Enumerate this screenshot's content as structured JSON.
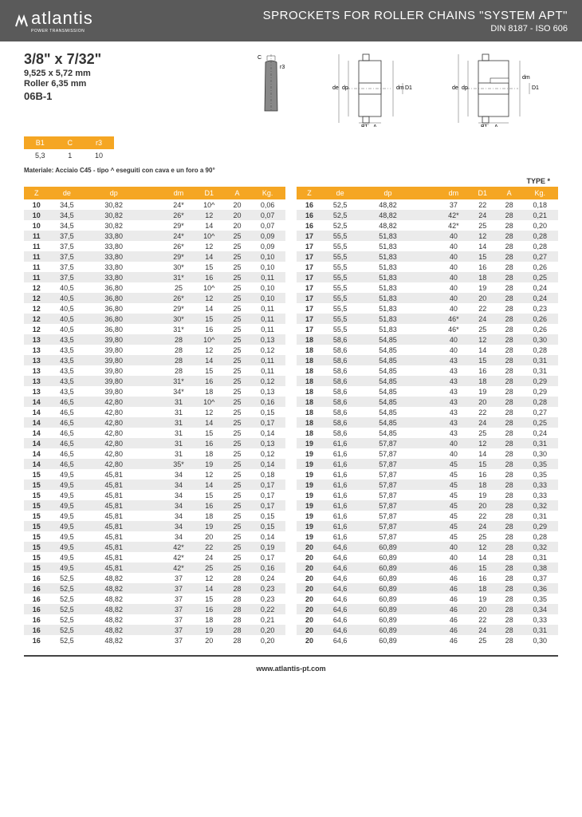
{
  "header": {
    "logo": "atlantis",
    "logo_sub": "POWER TRANSMISSION",
    "title": "SPROCKETS FOR ROLLER CHAINS \"SYSTEM APT\"",
    "sub": "DIN 8187 - ISO 606"
  },
  "specs": {
    "main": "3/8\" x 7/32\"",
    "mm": "9,525 x 5,72 mm",
    "roller": "Roller 6,35 mm",
    "code": "06B-1"
  },
  "small": {
    "headers": [
      "B1",
      "C",
      "r3"
    ],
    "values": [
      "5,3",
      "1",
      "10"
    ]
  },
  "material": "Materiale: Acciaio C45 - tipo ^ eseguiti con cava e un foro a 90°",
  "type": "TYPE *",
  "cols": [
    "Z",
    "de",
    "dp",
    "dm",
    "D1",
    "A",
    "Kg."
  ],
  "left": [
    [
      "10",
      "34,5",
      "30,82",
      "24*",
      "10^",
      "20",
      "0,06"
    ],
    [
      "10",
      "34,5",
      "30,82",
      "26*",
      "12",
      "20",
      "0,07"
    ],
    [
      "10",
      "34,5",
      "30,82",
      "29*",
      "14",
      "20",
      "0,07"
    ],
    [
      "11",
      "37,5",
      "33,80",
      "24*",
      "10^",
      "25",
      "0,09"
    ],
    [
      "11",
      "37,5",
      "33,80",
      "26*",
      "12",
      "25",
      "0,09"
    ],
    [
      "11",
      "37,5",
      "33,80",
      "29*",
      "14",
      "25",
      "0,10"
    ],
    [
      "11",
      "37,5",
      "33,80",
      "30*",
      "15",
      "25",
      "0,10"
    ],
    [
      "11",
      "37,5",
      "33,80",
      "31*",
      "16",
      "25",
      "0,11"
    ],
    [
      "12",
      "40,5",
      "36,80",
      "25",
      "10^",
      "25",
      "0,10"
    ],
    [
      "12",
      "40,5",
      "36,80",
      "26*",
      "12",
      "25",
      "0,10"
    ],
    [
      "12",
      "40,5",
      "36,80",
      "29*",
      "14",
      "25",
      "0,11"
    ],
    [
      "12",
      "40,5",
      "36,80",
      "30*",
      "15",
      "25",
      "0,11"
    ],
    [
      "12",
      "40,5",
      "36,80",
      "31*",
      "16",
      "25",
      "0,11"
    ],
    [
      "13",
      "43,5",
      "39,80",
      "28",
      "10^",
      "25",
      "0,13"
    ],
    [
      "13",
      "43,5",
      "39,80",
      "28",
      "12",
      "25",
      "0,12"
    ],
    [
      "13",
      "43,5",
      "39,80",
      "28",
      "14",
      "25",
      "0,11"
    ],
    [
      "13",
      "43,5",
      "39,80",
      "28",
      "15",
      "25",
      "0,11"
    ],
    [
      "13",
      "43,5",
      "39,80",
      "31*",
      "16",
      "25",
      "0,12"
    ],
    [
      "13",
      "43,5",
      "39,80",
      "34*",
      "18",
      "25",
      "0,13"
    ],
    [
      "14",
      "46,5",
      "42,80",
      "31",
      "10^",
      "25",
      "0,16"
    ],
    [
      "14",
      "46,5",
      "42,80",
      "31",
      "12",
      "25",
      "0,15"
    ],
    [
      "14",
      "46,5",
      "42,80",
      "31",
      "14",
      "25",
      "0,17"
    ],
    [
      "14",
      "46,5",
      "42,80",
      "31",
      "15",
      "25",
      "0,14"
    ],
    [
      "14",
      "46,5",
      "42,80",
      "31",
      "16",
      "25",
      "0,13"
    ],
    [
      "14",
      "46,5",
      "42,80",
      "31",
      "18",
      "25",
      "0,12"
    ],
    [
      "14",
      "46,5",
      "42,80",
      "35*",
      "19",
      "25",
      "0,14"
    ],
    [
      "15",
      "49,5",
      "45,81",
      "34",
      "12",
      "25",
      "0,18"
    ],
    [
      "15",
      "49,5",
      "45,81",
      "34",
      "14",
      "25",
      "0,17"
    ],
    [
      "15",
      "49,5",
      "45,81",
      "34",
      "15",
      "25",
      "0,17"
    ],
    [
      "15",
      "49,5",
      "45,81",
      "34",
      "16",
      "25",
      "0,17"
    ],
    [
      "15",
      "49,5",
      "45,81",
      "34",
      "18",
      "25",
      "0,15"
    ],
    [
      "15",
      "49,5",
      "45,81",
      "34",
      "19",
      "25",
      "0,15"
    ],
    [
      "15",
      "49,5",
      "45,81",
      "34",
      "20",
      "25",
      "0,14"
    ],
    [
      "15",
      "49,5",
      "45,81",
      "42*",
      "22",
      "25",
      "0,19"
    ],
    [
      "15",
      "49,5",
      "45,81",
      "42*",
      "24",
      "25",
      "0,17"
    ],
    [
      "15",
      "49,5",
      "45,81",
      "42*",
      "25",
      "25",
      "0,16"
    ],
    [
      "16",
      "52,5",
      "48,82",
      "37",
      "12",
      "28",
      "0,24"
    ],
    [
      "16",
      "52,5",
      "48,82",
      "37",
      "14",
      "28",
      "0,23"
    ],
    [
      "16",
      "52,5",
      "48,82",
      "37",
      "15",
      "28",
      "0,23"
    ],
    [
      "16",
      "52,5",
      "48,82",
      "37",
      "16",
      "28",
      "0,22"
    ],
    [
      "16",
      "52,5",
      "48,82",
      "37",
      "18",
      "28",
      "0,21"
    ],
    [
      "16",
      "52,5",
      "48,82",
      "37",
      "19",
      "28",
      "0,20"
    ],
    [
      "16",
      "52,5",
      "48,82",
      "37",
      "20",
      "28",
      "0,20"
    ]
  ],
  "right": [
    [
      "16",
      "52,5",
      "48,82",
      "37",
      "22",
      "28",
      "0,18"
    ],
    [
      "16",
      "52,5",
      "48,82",
      "42*",
      "24",
      "28",
      "0,21"
    ],
    [
      "16",
      "52,5",
      "48,82",
      "42*",
      "25",
      "28",
      "0,20"
    ],
    [
      "17",
      "55,5",
      "51,83",
      "40",
      "12",
      "28",
      "0,28"
    ],
    [
      "17",
      "55,5",
      "51,83",
      "40",
      "14",
      "28",
      "0,28"
    ],
    [
      "17",
      "55,5",
      "51,83",
      "40",
      "15",
      "28",
      "0,27"
    ],
    [
      "17",
      "55,5",
      "51,83",
      "40",
      "16",
      "28",
      "0,26"
    ],
    [
      "17",
      "55,5",
      "51,83",
      "40",
      "18",
      "28",
      "0,25"
    ],
    [
      "17",
      "55,5",
      "51,83",
      "40",
      "19",
      "28",
      "0,24"
    ],
    [
      "17",
      "55,5",
      "51,83",
      "40",
      "20",
      "28",
      "0,24"
    ],
    [
      "17",
      "55,5",
      "51,83",
      "40",
      "22",
      "28",
      "0,23"
    ],
    [
      "17",
      "55,5",
      "51,83",
      "46*",
      "24",
      "28",
      "0,26"
    ],
    [
      "17",
      "55,5",
      "51,83",
      "46*",
      "25",
      "28",
      "0,26"
    ],
    [
      "18",
      "58,6",
      "54,85",
      "40",
      "12",
      "28",
      "0,30"
    ],
    [
      "18",
      "58,6",
      "54,85",
      "40",
      "14",
      "28",
      "0,28"
    ],
    [
      "18",
      "58,6",
      "54,85",
      "43",
      "15",
      "28",
      "0,31"
    ],
    [
      "18",
      "58,6",
      "54,85",
      "43",
      "16",
      "28",
      "0,31"
    ],
    [
      "18",
      "58,6",
      "54,85",
      "43",
      "18",
      "28",
      "0,29"
    ],
    [
      "18",
      "58,6",
      "54,85",
      "43",
      "19",
      "28",
      "0,29"
    ],
    [
      "18",
      "58,6",
      "54,85",
      "43",
      "20",
      "28",
      "0,28"
    ],
    [
      "18",
      "58,6",
      "54,85",
      "43",
      "22",
      "28",
      "0,27"
    ],
    [
      "18",
      "58,6",
      "54,85",
      "43",
      "24",
      "28",
      "0,25"
    ],
    [
      "18",
      "58,6",
      "54,85",
      "43",
      "25",
      "28",
      "0,24"
    ],
    [
      "19",
      "61,6",
      "57,87",
      "40",
      "12",
      "28",
      "0,31"
    ],
    [
      "19",
      "61,6",
      "57,87",
      "40",
      "14",
      "28",
      "0,30"
    ],
    [
      "19",
      "61,6",
      "57,87",
      "45",
      "15",
      "28",
      "0,35"
    ],
    [
      "19",
      "61,6",
      "57,87",
      "45",
      "16",
      "28",
      "0,35"
    ],
    [
      "19",
      "61,6",
      "57,87",
      "45",
      "18",
      "28",
      "0,33"
    ],
    [
      "19",
      "61,6",
      "57,87",
      "45",
      "19",
      "28",
      "0,33"
    ],
    [
      "19",
      "61,6",
      "57,87",
      "45",
      "20",
      "28",
      "0,32"
    ],
    [
      "19",
      "61,6",
      "57,87",
      "45",
      "22",
      "28",
      "0,31"
    ],
    [
      "19",
      "61,6",
      "57,87",
      "45",
      "24",
      "28",
      "0,29"
    ],
    [
      "19",
      "61,6",
      "57,87",
      "45",
      "25",
      "28",
      "0,28"
    ],
    [
      "20",
      "64,6",
      "60,89",
      "40",
      "12",
      "28",
      "0,32"
    ],
    [
      "20",
      "64,6",
      "60,89",
      "40",
      "14",
      "28",
      "0,31"
    ],
    [
      "20",
      "64,6",
      "60,89",
      "46",
      "15",
      "28",
      "0,38"
    ],
    [
      "20",
      "64,6",
      "60,89",
      "46",
      "16",
      "28",
      "0,37"
    ],
    [
      "20",
      "64,6",
      "60,89",
      "46",
      "18",
      "28",
      "0,36"
    ],
    [
      "20",
      "64,6",
      "60,89",
      "46",
      "19",
      "28",
      "0,35"
    ],
    [
      "20",
      "64,6",
      "60,89",
      "46",
      "20",
      "28",
      "0,34"
    ],
    [
      "20",
      "64,6",
      "60,89",
      "46",
      "22",
      "28",
      "0,33"
    ],
    [
      "20",
      "64,6",
      "60,89",
      "46",
      "24",
      "28",
      "0,31"
    ],
    [
      "20",
      "64,6",
      "60,89",
      "46",
      "25",
      "28",
      "0,30"
    ]
  ],
  "footer": "www.atlantis-pt.com"
}
